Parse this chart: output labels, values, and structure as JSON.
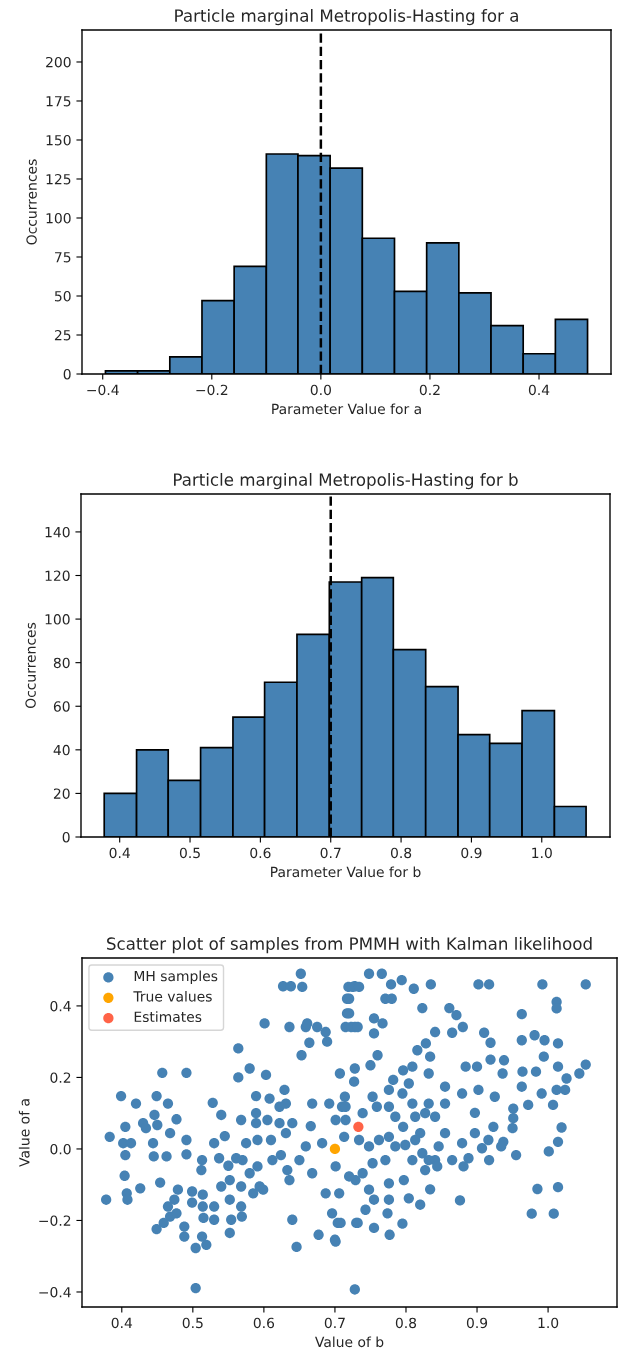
{
  "chart_data": [
    {
      "type": "histogram",
      "title": "Particle marginal Metropolis-Hasting for a",
      "xlabel": "Parameter Value for a",
      "ylabel": "Occurrences",
      "color": "#4682b4",
      "bins": [
        -0.395,
        -0.336,
        -0.277,
        -0.218,
        -0.159,
        -0.1,
        -0.042,
        0.017,
        0.076,
        0.135,
        0.194,
        0.253,
        0.312,
        0.371,
        0.43,
        0.489
      ],
      "values": [
        2,
        2,
        11,
        47,
        69,
        141,
        140,
        132,
        87,
        53,
        84,
        52,
        31,
        13,
        35
      ],
      "xlim": [
        -0.438,
        0.532
      ],
      "ylim": [
        0,
        220.5
      ],
      "xticks": [
        {
          "value": -0.4,
          "label": "−0.4"
        },
        {
          "value": -0.2,
          "label": "−0.2"
        },
        {
          "value": 0.0,
          "label": "0.0"
        },
        {
          "value": 0.2,
          "label": "0.2"
        },
        {
          "value": 0.4,
          "label": "0.4"
        }
      ],
      "yticks": [
        0,
        25,
        50,
        75,
        100,
        125,
        150,
        175,
        200
      ],
      "ref_lines": [
        {
          "axis": "x",
          "value": 0.0,
          "color": "#000000",
          "line_style": "dashed"
        }
      ]
    },
    {
      "type": "histogram",
      "title": "Particle marginal Metropolis-Hasting for b",
      "xlabel": "Parameter Value for b",
      "ylabel": "Occurrences",
      "color": "#4682b4",
      "bins": [
        0.378,
        0.424,
        0.469,
        0.515,
        0.561,
        0.606,
        0.652,
        0.698,
        0.744,
        0.789,
        0.835,
        0.881,
        0.926,
        0.972,
        1.018,
        1.063
      ],
      "values": [
        20,
        40,
        26,
        41,
        55,
        71,
        93,
        117,
        119,
        86,
        69,
        47,
        43,
        58,
        14
      ],
      "xlim": [
        0.345,
        1.097
      ],
      "ylim": [
        0,
        157.4
      ],
      "xticks": [
        {
          "value": 0.4,
          "label": "0.4"
        },
        {
          "value": 0.5,
          "label": "0.5"
        },
        {
          "value": 0.6,
          "label": "0.6"
        },
        {
          "value": 0.7,
          "label": "0.7"
        },
        {
          "value": 0.8,
          "label": "0.8"
        },
        {
          "value": 0.9,
          "label": "0.9"
        },
        {
          "value": 1.0,
          "label": "1.0"
        }
      ],
      "yticks": [
        0,
        20,
        40,
        60,
        80,
        100,
        120,
        140
      ],
      "ref_lines": [
        {
          "axis": "x",
          "value": 0.7,
          "color": "#000000",
          "line_style": "dashed"
        }
      ]
    },
    {
      "type": "scatter",
      "title": "Scatter plot of samples from PMMH with Kalman likelihood",
      "xlabel": "Value of b",
      "ylabel": "Value of a",
      "legend": "top left",
      "marker": "circle",
      "xlim": [
        0.344,
        1.097
      ],
      "ylim": [
        -0.442,
        0.534
      ],
      "xticks": [
        {
          "value": 0.4,
          "label": "0.4"
        },
        {
          "value": 0.5,
          "label": "0.5"
        },
        {
          "value": 0.6,
          "label": "0.6"
        },
        {
          "value": 0.7,
          "label": "0.7"
        },
        {
          "value": 0.8,
          "label": "0.8"
        },
        {
          "value": 0.9,
          "label": "0.9"
        },
        {
          "value": 1.0,
          "label": "1.0"
        }
      ],
      "yticks": [
        {
          "value": -0.4,
          "label": "−0.4"
        },
        {
          "value": -0.2,
          "label": "−0.2"
        },
        {
          "value": 0.0,
          "label": "0.0"
        },
        {
          "value": 0.2,
          "label": "0.2"
        },
        {
          "value": 0.4,
          "label": "0.4"
        }
      ],
      "series": [
        {
          "name": "MH samples",
          "color": "#4682b4",
          "x": [
            0.378,
            0.383,
            0.399,
            0.405,
            0.402,
            0.413,
            0.405,
            0.404,
            0.407,
            0.408,
            0.42,
            0.426,
            0.43,
            0.434,
            0.446,
            0.449,
            0.45,
            0.444,
            0.445,
            0.454,
            0.457,
            0.463,
            0.465,
            0.468,
            0.477,
            0.491,
            0.491,
            0.491,
            0.479,
            0.474,
            0.465,
            0.468,
            0.459,
            0.449,
            0.488,
            0.488,
            0.477,
            0.499,
            0.499,
            0.504,
            0.504,
            0.513,
            0.512,
            0.514,
            0.514,
            0.515,
            0.513,
            0.519,
            0.528,
            0.53,
            0.54,
            0.537,
            0.54,
            0.53,
            0.53,
            0.545,
            0.55,
            0.552,
            0.552,
            0.552,
            0.554,
            0.561,
            0.564,
            0.564,
            0.568,
            0.57,
            0.568,
            0.568,
            0.569,
            0.58,
            0.575,
            0.58,
            0.585,
            0.589,
            0.589,
            0.589,
            0.591,
            0.591,
            0.594,
            0.599,
            0.603,
            0.605,
            0.608,
            0.601,
            0.61,
            0.612,
            0.622,
            0.622,
            0.624,
            0.627,
            0.638,
            0.629,
            0.631,
            0.631,
            0.633,
            0.636,
            0.636,
            0.64,
            0.64,
            0.646,
            0.652,
            0.654,
            0.653,
            0.659,
            0.661,
            0.664,
            0.666,
            0.659,
            0.65,
            0.668,
            0.668,
            0.675,
            0.677,
            0.682,
            0.687,
            0.687,
            0.689,
            0.692,
            0.696,
            0.7,
            0.701,
            0.701,
            0.707,
            0.704,
            0.71,
            0.714,
            0.717,
            0.717,
            0.715,
            0.719,
            0.728,
            0.728,
            0.728,
            0.727,
            0.728,
            0.73,
            0.729,
            0.748,
            0.766,
            0.725,
            0.734,
            0.72,
            0.72,
            0.723,
            0.732,
            0.755,
            0.767,
            0.755,
            0.76,
            0.75,
            0.771,
            0.78,
            0.779,
            0.794,
            0.811,
            0.835,
            0.823,
            0.861,
            0.871,
            0.88,
            0.865,
            0.902,
            0.917,
            0.992,
            1.053,
            1.012,
            1.012,
            0.963,
            0.91,
            0.919,
            0.963,
            0.981,
            0.995,
            1.014,
            0.994,
            0.919,
            0.938,
            0.936,
            0.964,
            0.983,
            1.014,
            1.053,
            1.044,
            1.026,
            1.024,
            1.012,
            0.991,
            0.963,
            0.972,
            1.007,
            0.951,
            0.951,
            0.95,
            1.019,
            1.014,
            1.001,
            0.955,
            0.937,
            0.917,
            0.907,
            0.888,
            0.881,
            0.865,
            0.876,
            0.985,
            1.014,
            0.977,
            1.008,
            0.897,
            0.923,
            0.925,
            0.902,
            0.879,
            0.884,
            0.9,
            0.855,
            0.832,
            0.855,
            0.841,
            0.855,
            0.846,
            0.841,
            0.832,
            0.82,
            0.827,
            0.813,
            0.809,
            0.795,
            0.804,
            0.816,
            0.828,
            0.841,
            0.834,
            0.832,
            0.809,
            0.796,
            0.782,
            0.776,
            0.753,
            0.759,
            0.776,
            0.785,
            0.796,
            0.813,
            0.799,
            0.785,
            0.776,
            0.762,
            0.748,
            0.734,
            0.713,
            0.715,
            0.715,
            0.739,
            0.834,
            0.82,
            0.804,
            0.797,
            0.776,
            0.771,
            0.753,
            0.739,
            0.72,
            0.706,
            0.748,
            0.755,
            0.776,
            0.809,
            0.823,
            0.795,
            0.774,
            0.755,
            0.732,
            0.743,
            0.777,
            0.701,
            0.708,
            0.827,
            0.844,
            0.879,
            0.897,
            0.916,
            0.934
          ],
          "values": [
            -0.142,
            0.034,
            0.148,
            0.062,
            0.016,
            0.016,
            -0.017,
            -0.075,
            -0.124,
            -0.142,
            0.127,
            -0.11,
            0.072,
            0.058,
            0.095,
            0.148,
            0.067,
            0.016,
            -0.021,
            -0.094,
            0.213,
            -0.021,
            0.127,
            0.044,
            0.083,
            0.213,
            0.025,
            -0.015,
            -0.114,
            -0.142,
            -0.161,
            -0.189,
            -0.207,
            -0.224,
            -0.217,
            -0.245,
            -0.18,
            -0.119,
            -0.15,
            -0.277,
            -0.389,
            -0.031,
            -0.059,
            -0.128,
            -0.161,
            -0.193,
            -0.245,
            -0.268,
            0.129,
            0.016,
            0.095,
            -0.026,
            -0.105,
            -0.161,
            -0.198,
            0.036,
            -0.047,
            -0.087,
            -0.142,
            -0.235,
            -0.198,
            -0.026,
            0.281,
            0.2,
            0.081,
            -0.031,
            -0.105,
            -0.161,
            -0.189,
            0.225,
            0.016,
            -0.068,
            -0.124,
            0.148,
            0.1,
            0.072,
            0.025,
            -0.049,
            -0.105,
            -0.114,
            0.207,
            0.081,
            0.141,
            0.351,
            0.025,
            -0.031,
            0.118,
            0.072,
            -0.017,
            0.455,
            0.455,
            0.165,
            0.127,
            0.044,
            -0.059,
            -0.087,
            0.341,
            -0.198,
            0.072,
            -0.274,
            0.49,
            0.453,
            0.262,
            0.341,
            0.351,
            0.297,
            0.064,
            0.007,
            -0.031,
            0.127,
            -0.068,
            0.341,
            -0.24,
            0.016,
            0.327,
            -0.124,
            0.3,
            0.127,
            -0.18,
            -0.254,
            0.081,
            -0.049,
            0.211,
            -0.207,
            0.118,
            0.146,
            0.42,
            0.379,
            0.341,
            0.453,
            0.455,
            0.341,
            0.225,
            0.188,
            -0.393,
            -0.207,
            -0.087,
            0.49,
            0.49,
            0.453,
            0.453,
            0.42,
            0.379,
            0.341,
            0.341,
            0.365,
            0.351,
            0.323,
            0.262,
            0.234,
            0.42,
            0.42,
            0.46,
            0.472,
            0.448,
            0.46,
            0.394,
            0.394,
            0.374,
            0.341,
            0.325,
            0.46,
            0.46,
            0.46,
            0.46,
            0.411,
            0.393,
            0.377,
            0.325,
            0.297,
            0.304,
            0.318,
            0.304,
            0.295,
            0.258,
            0.25,
            0.248,
            0.211,
            0.216,
            0.216,
            0.23,
            0.236,
            0.211,
            0.197,
            0.165,
            0.165,
            0.155,
            0.174,
            0.123,
            0.123,
            0.113,
            0.086,
            0.058,
            0.06,
            0.02,
            -0.007,
            -0.017,
            0.02,
            -0.031,
            0.002,
            -0.026,
            -0.049,
            -0.031,
            -0.144,
            -0.112,
            -0.107,
            -0.181,
            -0.181,
            0.101,
            0.062,
            0.146,
            0.165,
            0.155,
            0.23,
            0.23,
            0.174,
            0.127,
            0.127,
            0.09,
            0.044,
            0.007,
            -0.031,
            -0.031,
            0.044,
            0.1,
            0.09,
            0.127,
            0.155,
            0.183,
            0.276,
            0.295,
            0.327,
            0.258,
            0.211,
            0.23,
            0.22,
            0.193,
            0.165,
            0.146,
            0.118,
            0.118,
            0.09,
            0.062,
            0.025,
            0.011,
            0.007,
            0.034,
            0.025,
            0.007,
            0.025,
            0.034,
            0.081,
            0.118,
            0.1,
            -0.113,
            -0.156,
            -0.138,
            -0.087,
            -0.096,
            -0.031,
            -0.04,
            -0.068,
            -0.077,
            -0.124,
            -0.114,
            -0.142,
            -0.142,
            -0.031,
            -0.012,
            -0.209,
            -0.18,
            -0.221,
            -0.207,
            -0.17,
            -0.24,
            -0.259,
            -0.207,
            -0.059,
            -0.049,
            0.016,
            0.044,
            0.025,
            0.007
          ]
        },
        {
          "name": "True values",
          "color": "#ffa500",
          "x": [
            0.7
          ],
          "values": [
            0.0
          ]
        },
        {
          "name": "Estimates",
          "color": "#ff6347",
          "x": [
            0.733
          ],
          "values": [
            0.062
          ]
        }
      ]
    }
  ]
}
